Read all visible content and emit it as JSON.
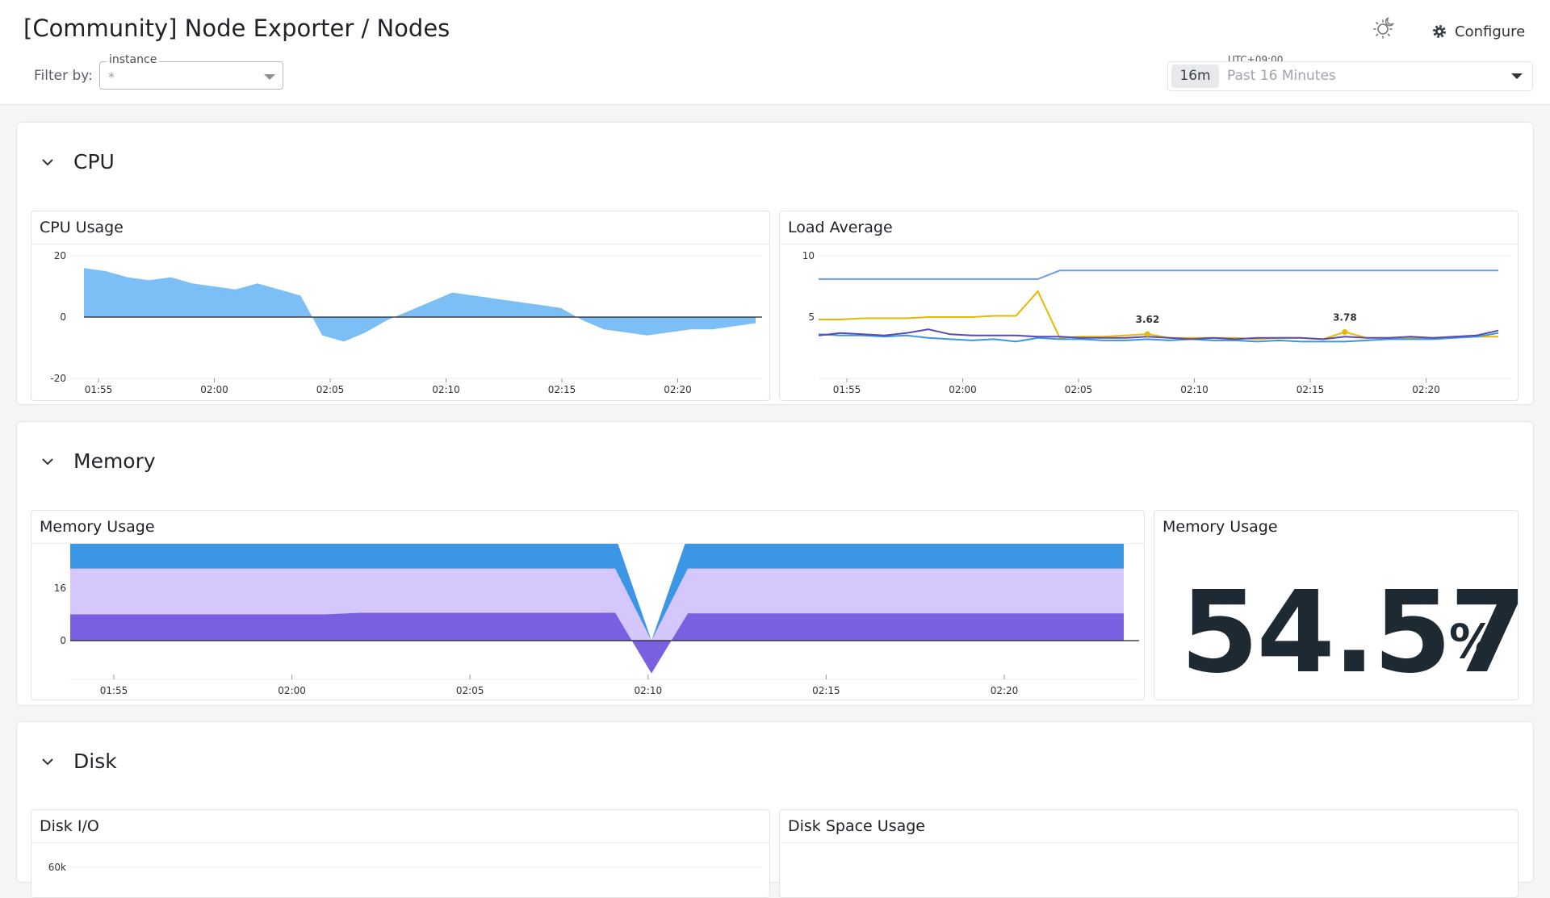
{
  "header": {
    "title": "[Community] Node Exporter / Nodes",
    "filter_label": "Filter by:",
    "filter_name": "instance",
    "filter_value": "*",
    "configure_label": "Configure",
    "timezone": "UTC+09:00",
    "time_chip": "16m",
    "time_range": "Past 16 Minutes"
  },
  "icons": {
    "theme": "sun-moon-icon",
    "configure": "gear-icon",
    "section_toggle": "chevron-down-icon"
  },
  "colors": {
    "cpu_fill": "#7cbff7",
    "mem_used": "#7a5fe0",
    "mem_cached": "#d5c6fb",
    "mem_buffers": "#3b96e6",
    "load_1": "#e6b800",
    "load_5": "#3b96e6",
    "load_15": "#5b4bb0",
    "load_cpus": "#6b9be2"
  },
  "sections": [
    {
      "title": "CPU"
    },
    {
      "title": "Memory"
    },
    {
      "title": "Disk"
    }
  ],
  "panels": {
    "cpu_usage": {
      "title": "CPU Usage"
    },
    "load_average": {
      "title": "Load Average"
    },
    "memory_usage_chart": {
      "title": "Memory Usage"
    },
    "memory_usage_stat": {
      "title": "Memory Usage",
      "value": "54.57",
      "unit": "%"
    },
    "disk_io": {
      "title": "Disk I/O"
    },
    "disk_space": {
      "title": "Disk Space Usage"
    }
  },
  "chart_data": [
    {
      "id": "cpu_usage",
      "type": "area",
      "x": [
        "01:52",
        "01:53",
        "01:54",
        "01:55",
        "01:56",
        "01:57",
        "01:58",
        "01:59",
        "02:00",
        "02:01",
        "02:02",
        "02:03",
        "02:04",
        "02:05",
        "02:06",
        "02:07",
        "02:08",
        "02:09",
        "02:10",
        "02:11",
        "02:12",
        "02:13",
        "02:14",
        "02:15",
        "02:16",
        "02:17",
        "02:18",
        "02:19",
        "02:20",
        "02:21",
        "02:22",
        "02:23"
      ],
      "values": [
        16,
        15,
        13,
        12,
        13,
        11,
        10,
        9,
        11,
        9,
        7,
        -6,
        -8,
        -5,
        -1,
        2,
        5,
        8,
        7,
        6,
        5,
        4,
        3,
        -1,
        -4,
        -5,
        -6,
        -5,
        -4,
        -4,
        -3,
        -2
      ],
      "xticks": [
        "01:55",
        "02:00",
        "02:05",
        "02:10",
        "02:15",
        "02:20"
      ],
      "yticks": [
        "20",
        "0",
        "-20"
      ],
      "ylim": [
        -20,
        20
      ]
    },
    {
      "id": "load_average",
      "type": "line",
      "xticks": [
        "01:55",
        "02:00",
        "02:05",
        "02:10",
        "02:15",
        "02:20"
      ],
      "yticks": [
        "10",
        "5"
      ],
      "ylim": [
        0,
        10
      ],
      "series": [
        {
          "values": [
            8.1,
            8.1,
            8.1,
            8.1,
            8.1,
            8.1,
            8.1,
            8.1,
            8.1,
            8.1,
            8.1,
            8.8,
            8.8,
            8.8,
            8.8,
            8.8,
            8.8,
            8.8,
            8.8,
            8.8,
            8.8,
            8.8,
            8.8,
            8.8,
            8.8,
            8.8,
            8.8,
            8.8,
            8.8,
            8.8,
            8.8,
            8.8
          ]
        },
        {
          "values": [
            4.8,
            4.8,
            4.9,
            4.9,
            4.9,
            5.0,
            5.0,
            5.0,
            5.1,
            5.1,
            7.1,
            3.3,
            3.4,
            3.4,
            3.5,
            3.62,
            3.3,
            3.3,
            3.3,
            3.3,
            3.2,
            3.3,
            3.3,
            3.2,
            3.78,
            3.3,
            3.3,
            3.3,
            3.3,
            3.4,
            3.4,
            3.4
          ]
        },
        {
          "values": [
            3.6,
            3.5,
            3.5,
            3.4,
            3.5,
            3.3,
            3.2,
            3.1,
            3.2,
            3.0,
            3.3,
            3.2,
            3.2,
            3.1,
            3.1,
            3.2,
            3.1,
            3.2,
            3.1,
            3.1,
            3.0,
            3.1,
            3.0,
            3.0,
            3.0,
            3.1,
            3.2,
            3.2,
            3.2,
            3.3,
            3.4,
            3.7
          ]
        },
        {
          "values": [
            3.5,
            3.7,
            3.6,
            3.5,
            3.7,
            4.0,
            3.6,
            3.5,
            3.5,
            3.5,
            3.4,
            3.4,
            3.3,
            3.3,
            3.3,
            3.4,
            3.3,
            3.2,
            3.3,
            3.2,
            3.3,
            3.3,
            3.3,
            3.2,
            3.4,
            3.3,
            3.3,
            3.4,
            3.3,
            3.4,
            3.5,
            3.9
          ]
        }
      ],
      "annotations": [
        "3.62",
        "3.78"
      ]
    },
    {
      "id": "memory_usage_chart",
      "type": "area",
      "xticks": [
        "01:55",
        "02:00",
        "02:05",
        "02:10",
        "02:15",
        "02:20"
      ],
      "yticks": [
        "16",
        "0"
      ],
      "series": [
        {
          "values": [
            8,
            8,
            8,
            8,
            8,
            8,
            8,
            8,
            8.5,
            8.5,
            8.5,
            8.5,
            8.5,
            8.5,
            8.5,
            8.5,
            -10,
            8.3,
            8.3,
            8.3,
            8.3,
            8.3,
            8.3,
            8.3,
            8.3,
            8.3,
            8.3,
            8.3,
            8.3,
            8.3
          ]
        },
        {
          "values": [
            22,
            22,
            22,
            22,
            22,
            22,
            22,
            22,
            22,
            22,
            22,
            22,
            22,
            22,
            22,
            22,
            0,
            22,
            22,
            22,
            22,
            22,
            22,
            22,
            22,
            22,
            22,
            22,
            22,
            22
          ]
        },
        {
          "values": [
            30,
            30,
            30,
            30,
            30,
            30,
            30,
            30,
            32,
            32,
            32,
            32,
            32,
            32,
            32,
            32,
            0,
            32,
            32,
            32,
            32,
            32,
            32,
            32,
            32,
            32,
            32,
            32,
            32,
            32
          ]
        }
      ]
    },
    {
      "id": "disk_io",
      "type": "line",
      "yticks": [
        "60k"
      ]
    }
  ]
}
